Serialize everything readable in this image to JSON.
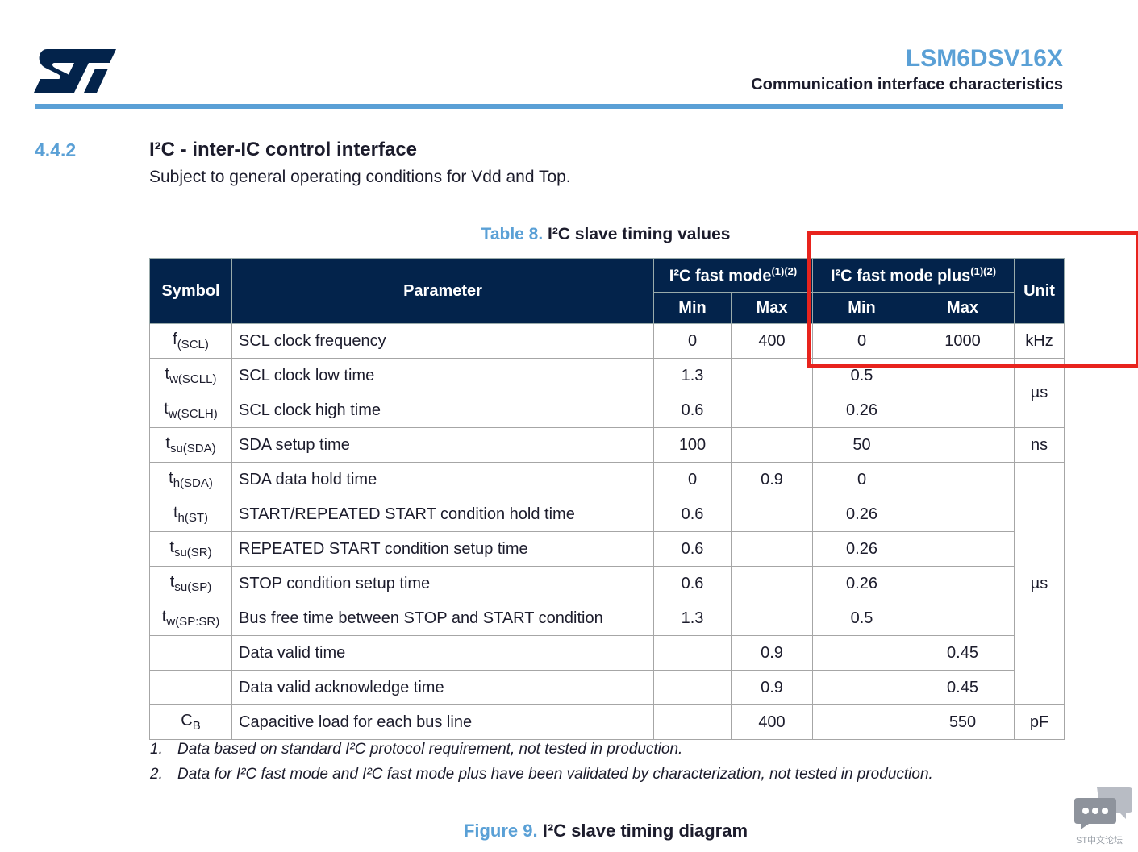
{
  "header": {
    "product": "LSM6DSV16X",
    "section": "Communication interface characteristics"
  },
  "heading": {
    "number": "4.4.2",
    "title": "I²C - inter-IC control interface",
    "subtitle": "Subject to general operating conditions for Vdd and Top."
  },
  "table": {
    "caption_label": "Table 8.",
    "caption": "I²C slave timing values",
    "headers": {
      "symbol": "Symbol",
      "parameter": "Parameter",
      "fast_mode": {
        "text": "I²C fast mode",
        "note": "(1)(2)"
      },
      "fast_mode_plus": {
        "text": "I²C fast mode plus",
        "note": "(1)(2)"
      },
      "min": "Min",
      "max": "Max",
      "unit": "Unit"
    },
    "rows": [
      {
        "symbol": {
          "main": "f",
          "sub": "(SCL)"
        },
        "parameter": "SCL clock frequency",
        "values": [
          "0",
          "400",
          "0",
          "1000"
        ],
        "unit": "kHz"
      },
      {
        "symbol": {
          "main": "t",
          "sub": "w(SCLL)"
        },
        "parameter": "SCL clock low time",
        "values": [
          "1.3",
          null,
          "0.5",
          null
        ],
        "unit": "µs"
      },
      {
        "symbol": {
          "main": "t",
          "sub": "w(SCLH)"
        },
        "parameter": "SCL clock high time",
        "values": [
          "0.6",
          null,
          "0.26",
          null
        ],
        "unit": null
      },
      {
        "symbol": {
          "main": "t",
          "sub": "su(SDA)"
        },
        "parameter": "SDA setup time",
        "values": [
          "100",
          null,
          "50",
          null
        ],
        "unit": "ns"
      },
      {
        "symbol": {
          "main": "t",
          "sub": "h(SDA)"
        },
        "parameter": "SDA data hold time",
        "values": [
          "0",
          "0.9",
          "0",
          null
        ],
        "unit": "µs"
      },
      {
        "symbol": {
          "main": "t",
          "sub": "h(ST)"
        },
        "parameter": "START/REPEATED START condition hold time",
        "values": [
          "0.6",
          null,
          "0.26",
          null
        ],
        "unit": null
      },
      {
        "symbol": {
          "main": "t",
          "sub": "su(SR)"
        },
        "parameter": "REPEATED START condition setup time",
        "values": [
          "0.6",
          null,
          "0.26",
          null
        ],
        "unit": null
      },
      {
        "symbol": {
          "main": "t",
          "sub": "su(SP)"
        },
        "parameter": "STOP condition setup time",
        "values": [
          "0.6",
          null,
          "0.26",
          null
        ],
        "unit": null
      },
      {
        "symbol": {
          "main": "t",
          "sub": "w(SP:SR)"
        },
        "parameter": "Bus free time between STOP and START condition",
        "values": [
          "1.3",
          null,
          "0.5",
          null
        ],
        "unit": null
      },
      {
        "symbol": null,
        "parameter": "Data valid time",
        "values": [
          null,
          "0.9",
          null,
          "0.45"
        ],
        "unit": null
      },
      {
        "symbol": null,
        "parameter": "Data valid acknowledge time",
        "values": [
          null,
          "0.9",
          null,
          "0.45"
        ],
        "unit": null
      },
      {
        "symbol": {
          "main": "C",
          "sub": "B"
        },
        "parameter": "Capacitive load for each bus line",
        "values": [
          null,
          "400",
          null,
          "550"
        ],
        "unit": "pF"
      }
    ]
  },
  "footnotes": [
    {
      "number": "1.",
      "text": "Data based on standard I²C protocol requirement, not tested in production."
    },
    {
      "number": "2.",
      "text": "Data for I²C fast mode and I²C fast mode plus have been validated by characterization, not tested in production."
    }
  ],
  "figure": {
    "label": "Figure 9.",
    "caption": "I²C slave timing diagram"
  },
  "watermark": "ST中文论坛"
}
